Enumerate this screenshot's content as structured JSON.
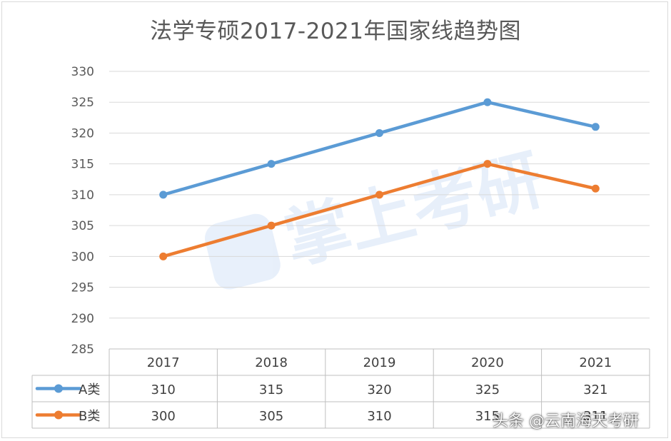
{
  "chart_data": {
    "type": "line",
    "title": "法学专硕2017-2021年国家线趋势图",
    "categories": [
      "2017",
      "2018",
      "2019",
      "2020",
      "2021"
    ],
    "ylim": [
      285,
      330
    ],
    "y_ticks": [
      285,
      290,
      295,
      300,
      305,
      310,
      315,
      320,
      325,
      330
    ],
    "grid": true,
    "legend": "data-table",
    "series": [
      {
        "name": "A类",
        "color": "#5b9bd5",
        "values": [
          310,
          315,
          320,
          325,
          321
        ]
      },
      {
        "name": "B类",
        "color": "#ed7d31",
        "values": [
          300,
          305,
          310,
          315,
          311
        ]
      }
    ],
    "table_values": [
      [
        "310",
        "315",
        "320",
        "325",
        "321"
      ],
      [
        "300",
        "305",
        "310",
        "315",
        "311"
      ]
    ]
  },
  "watermark": {
    "logo_text": "掌上考研",
    "credit_text": "头条 @云南海天考研"
  }
}
